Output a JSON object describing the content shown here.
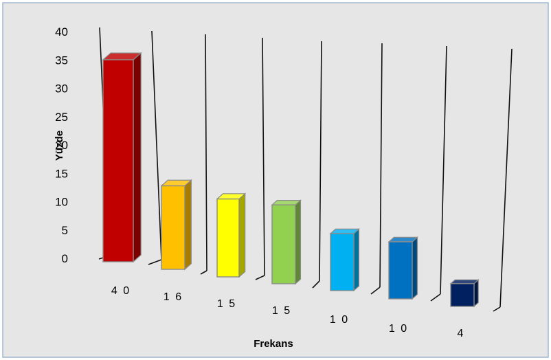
{
  "chart_data": {
    "type": "bar",
    "title": "",
    "xlabel": "Frekans",
    "ylabel": "Yüzde",
    "ylim": [
      0,
      40
    ],
    "ytick_values": [
      0,
      5,
      10,
      15,
      20,
      25,
      30,
      35,
      40
    ],
    "ytick_labels": [
      "0",
      "5",
      "10",
      "15",
      "20",
      "25",
      "30",
      "35",
      "40"
    ],
    "categories": [
      "4 0",
      "1 6",
      "1 5",
      "1 5",
      "1 0",
      "1 0",
      "4"
    ],
    "values": [
      35,
      15,
      14,
      14,
      10,
      10,
      4
    ],
    "colors": [
      "#c00000",
      "#ffc000",
      "#ffff00",
      "#92d050",
      "#00b0f0",
      "#0070c0",
      "#002060"
    ],
    "gridlines": true,
    "legend": "none",
    "style": "3d-perspective"
  }
}
